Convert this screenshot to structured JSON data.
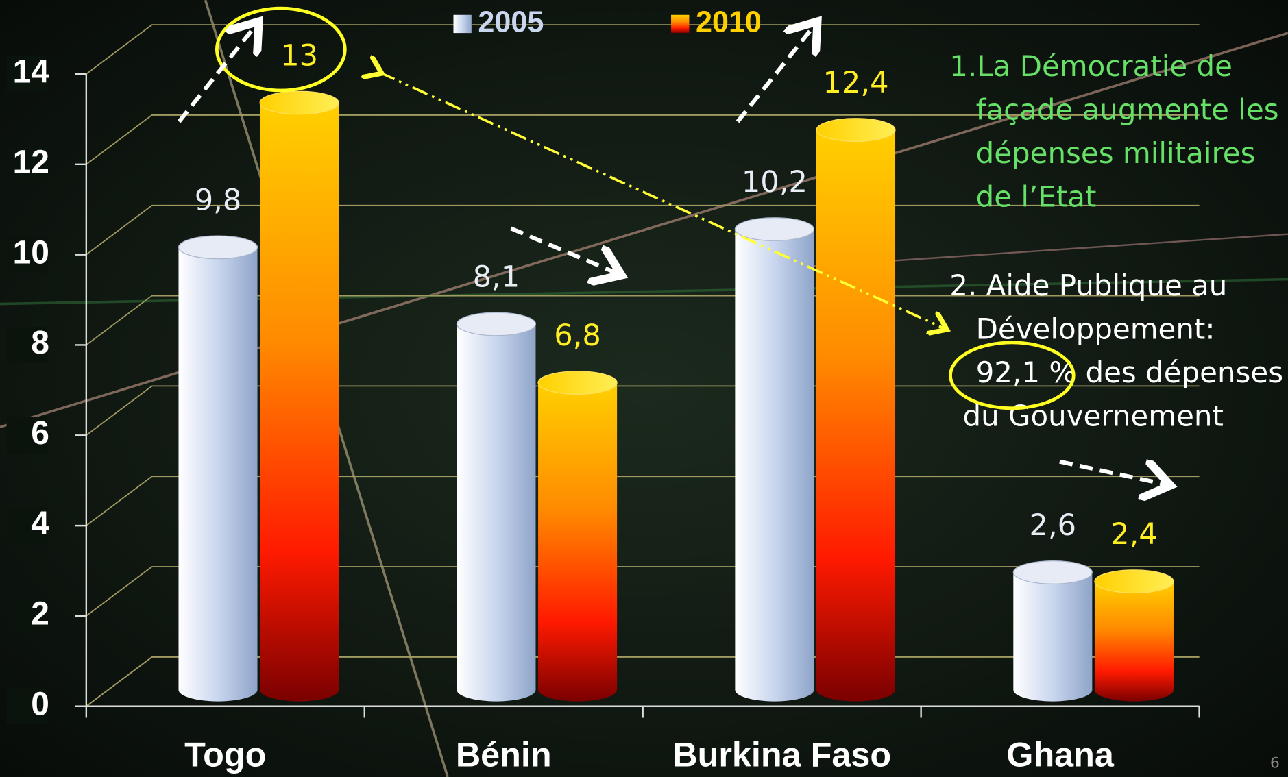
{
  "chart_data": {
    "type": "bar3d",
    "categories": [
      "Togo",
      "Bénin",
      "Burkina Faso",
      "Ghana"
    ],
    "series": [
      {
        "name": "2005",
        "color": "#c9d6ee",
        "values": [
          9.8,
          8.1,
          10.2,
          2.6
        ],
        "value_labels": [
          "9,8",
          "8,1",
          "10,2",
          "2,6"
        ]
      },
      {
        "name": "2010",
        "color": "#ffd000",
        "values": [
          13,
          6.8,
          12.4,
          2.4
        ],
        "value_labels": [
          "13",
          "6,8",
          "12,4",
          "2,4"
        ]
      }
    ],
    "ylim": [
      0,
      14
    ],
    "yticks": [
      0,
      2,
      4,
      6,
      8,
      10,
      12,
      14
    ],
    "grid": true,
    "annotations": [
      {
        "color": "#66e066",
        "lines": [
          "1.La Démocratie de",
          "façade augmente les",
          "dépenses militaires",
          "de l’Etat"
        ]
      },
      {
        "color": "#ffffff",
        "lines": [
          "2. Aide Publique au",
          "Développement:",
          "92,1 % des dépenses",
          "du Gouvernement"
        ]
      }
    ],
    "page_number": "6"
  }
}
